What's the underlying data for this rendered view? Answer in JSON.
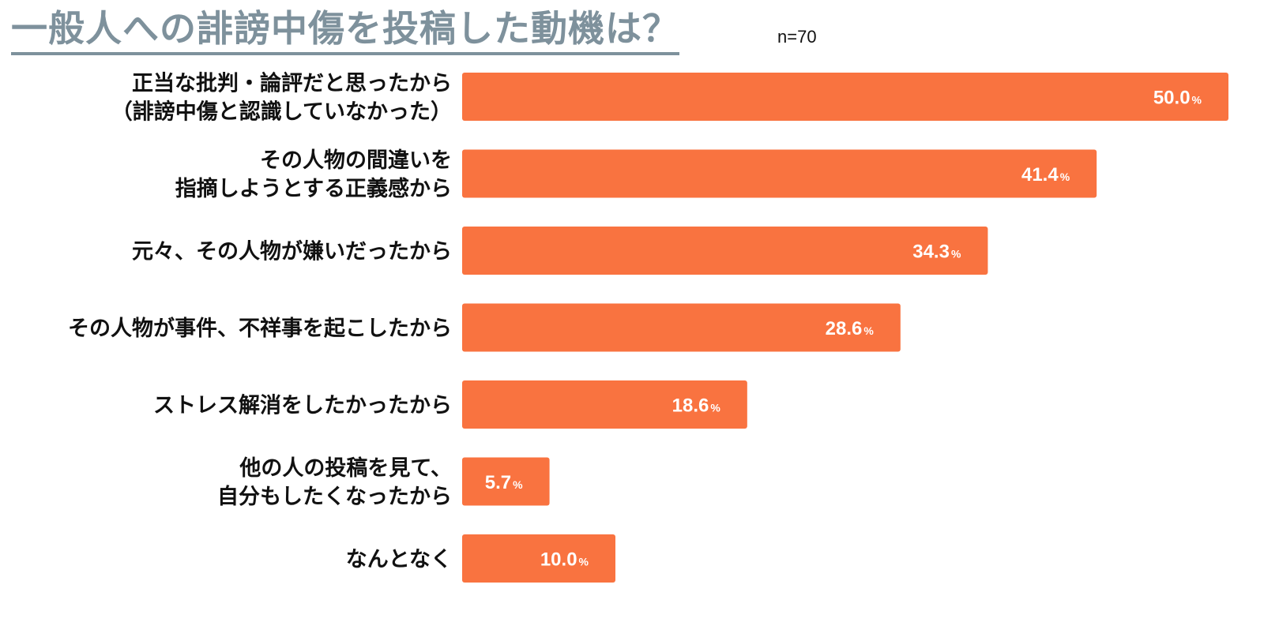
{
  "header": {
    "title": "一般人への誹謗中傷を投稿した動機は？",
    "sample_size": "n=70"
  },
  "colors": {
    "title": "#7e919c",
    "bar": "#f97340",
    "label": "#111111",
    "value_text": "#ffffff"
  },
  "chart_data": {
    "type": "bar",
    "orientation": "horizontal",
    "title": "一般人への誹謗中傷を投稿した動機は？",
    "note": "n=70",
    "unit": "%",
    "xlim": [
      0,
      50
    ],
    "grid": false,
    "categories": [
      [
        "正当な批判・論評だと思ったから",
        "（誹謗中傷と認識していなかった）"
      ],
      [
        "その人物の間違いを",
        "指摘しようとする正義感から"
      ],
      [
        "元々、その人物が嫌いだったから"
      ],
      [
        "その人物が事件、不祥事を起こしたから"
      ],
      [
        "ストレス解消をしたかったから"
      ],
      [
        "他の人の投稿を見て、",
        "自分もしたくなったから"
      ],
      [
        "なんとなく"
      ]
    ],
    "values": [
      50.0,
      41.4,
      34.3,
      28.6,
      18.6,
      5.7,
      10.0
    ],
    "value_labels": [
      "50.0",
      "41.4",
      "34.3",
      "28.6",
      "18.6",
      "5.7",
      "10.0"
    ],
    "value_unit_label": "%"
  }
}
